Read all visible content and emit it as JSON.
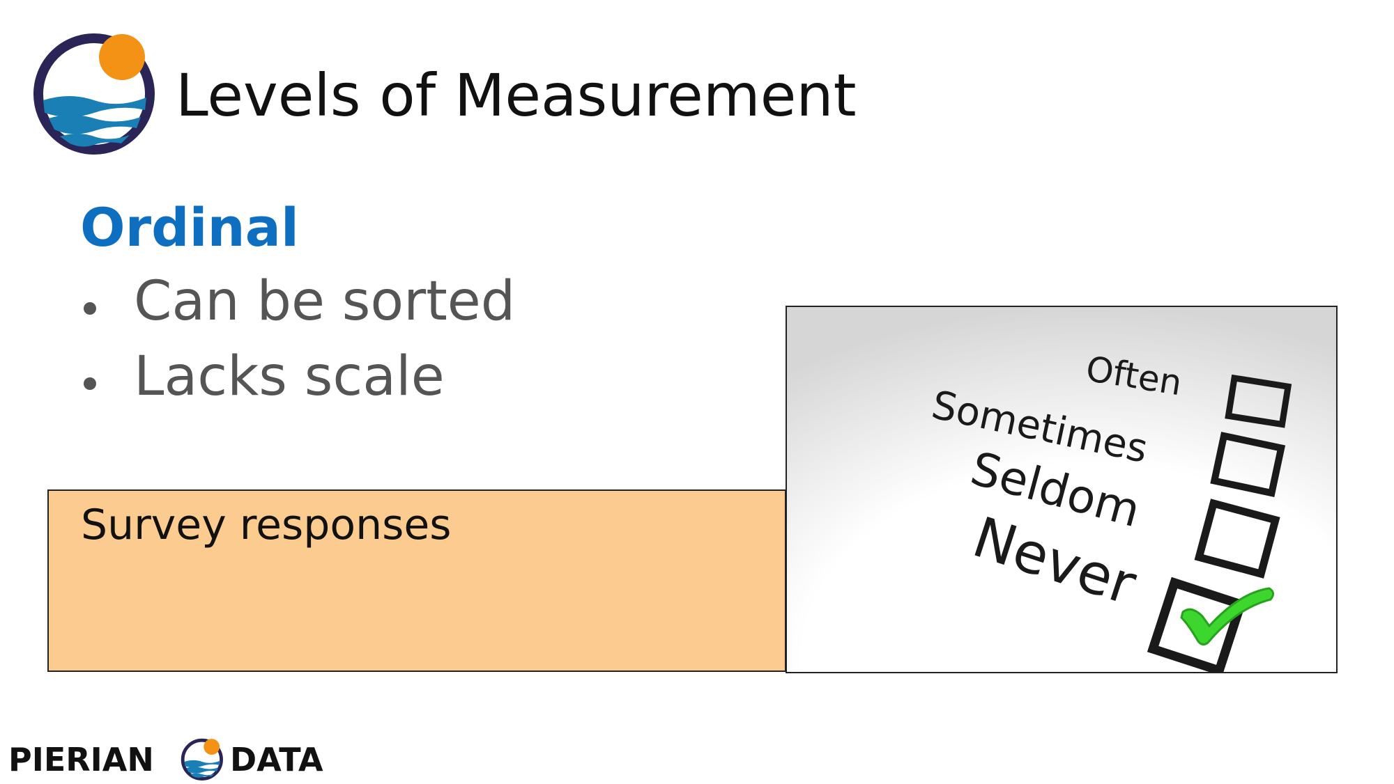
{
  "header": {
    "title": "Levels of Measurement",
    "logo_icon": "pierian-data-logo-icon"
  },
  "section": {
    "heading": "Ordinal",
    "bullets": [
      "Can be sorted",
      "Lacks scale"
    ]
  },
  "example": {
    "label": "Survey responses",
    "background_color": "#fccb8f"
  },
  "survey_image": {
    "options": [
      {
        "label": "Often",
        "checked": false
      },
      {
        "label": "Sometimes",
        "checked": false
      },
      {
        "label": "Seldom",
        "checked": false
      },
      {
        "label": "Never",
        "checked": true
      }
    ],
    "check_color": "#3cd62e"
  },
  "footer": {
    "brand_left": "PIERIAN",
    "brand_right": "DATA"
  },
  "colors": {
    "heading": "#0e6fc1",
    "bullet_text": "#555555",
    "logo_ring": "#2b2456",
    "logo_sun": "#f39214",
    "logo_waves": "#1a7fb5"
  }
}
